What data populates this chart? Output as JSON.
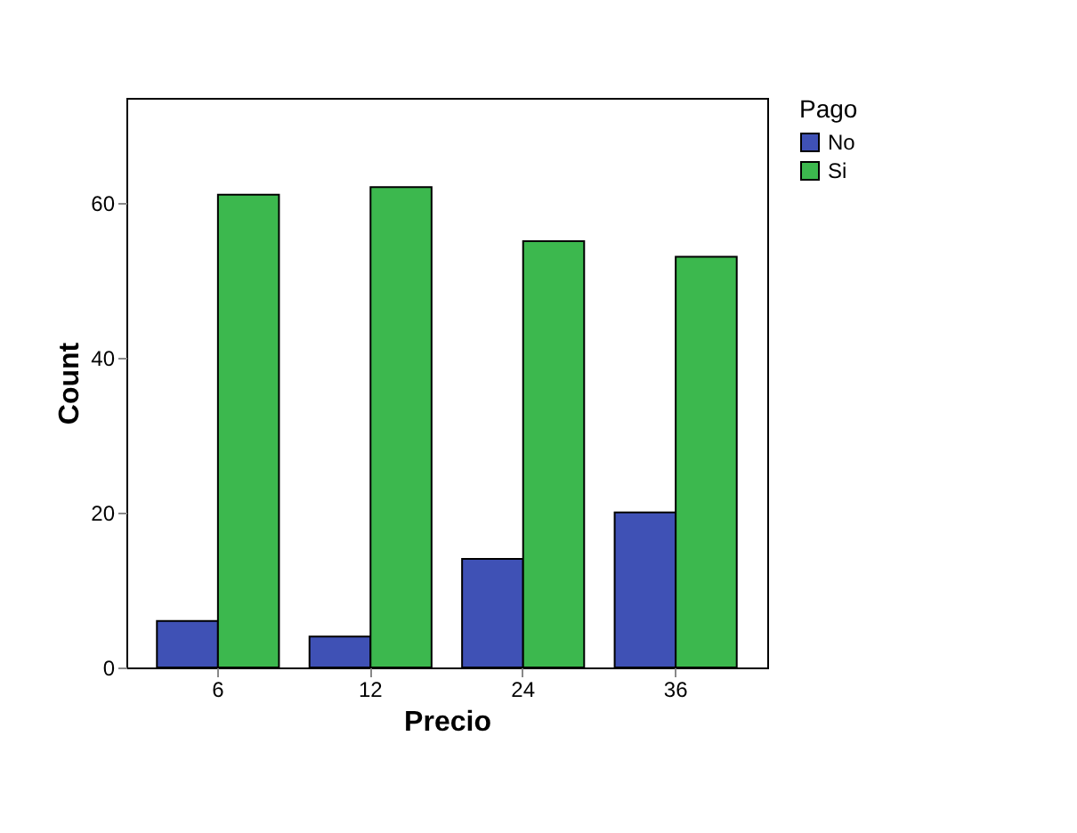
{
  "chart_data": {
    "type": "bar",
    "xlabel": "Precio",
    "ylabel": "Count",
    "legend_title": "Pago",
    "categories": [
      "6",
      "12",
      "24",
      "36"
    ],
    "series": [
      {
        "name": "No",
        "color": "#3f51b5",
        "values": [
          6,
          4,
          14,
          20
        ]
      },
      {
        "name": "Si",
        "color": "#3cb84e",
        "values": [
          61,
          62,
          55,
          53
        ]
      }
    ],
    "ylim": [
      0,
      73.5
    ],
    "yticks": [
      0,
      20,
      40,
      60
    ],
    "grid": false,
    "legend": "top right"
  }
}
